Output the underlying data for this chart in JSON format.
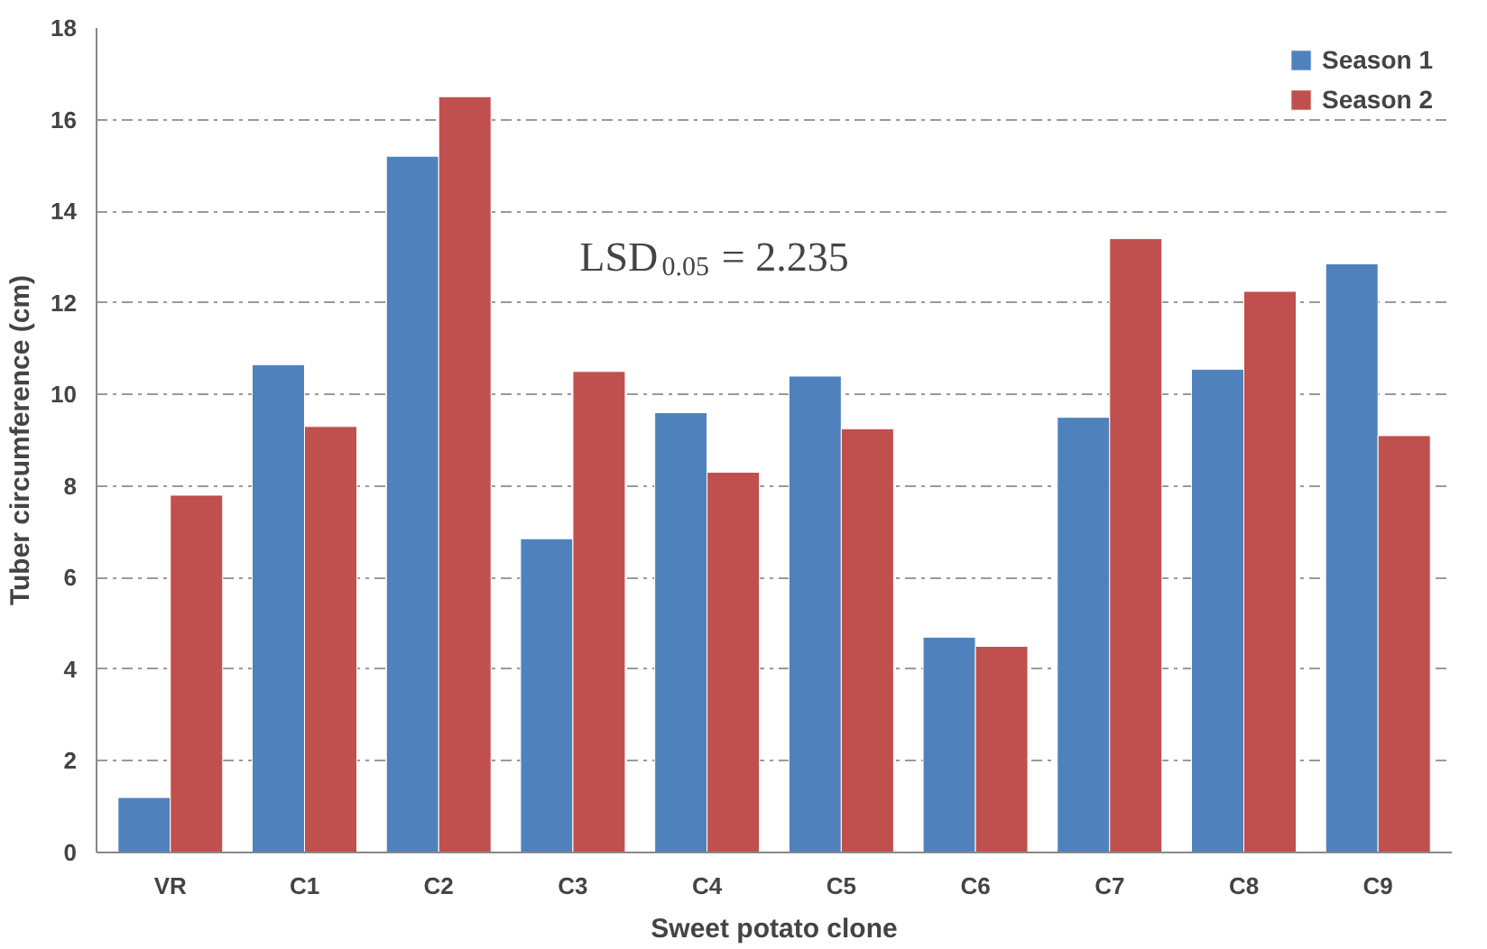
{
  "chart_data": {
    "type": "bar",
    "xlabel": "Sweet potato clone",
    "ylabel": "Tuber circumference (cm)",
    "categories": [
      "VR",
      "C1",
      "C2",
      "C3",
      "C4",
      "C5",
      "C6",
      "C7",
      "C8",
      "C9"
    ],
    "series": [
      {
        "name": "Season 1",
        "color": "#4f81bd",
        "values": [
          1.2,
          10.65,
          15.2,
          6.85,
          9.6,
          10.4,
          4.7,
          9.5,
          10.55,
          12.85
        ]
      },
      {
        "name": "Season 2",
        "color": "#c0504d",
        "values": [
          7.8,
          9.3,
          16.5,
          10.5,
          8.3,
          9.25,
          4.5,
          13.4,
          12.25,
          9.1
        ]
      }
    ],
    "ylim": [
      0,
      18
    ],
    "yticks": [
      0,
      2,
      4,
      6,
      8,
      10,
      12,
      14,
      16,
      18
    ],
    "grid": "y",
    "legend": "top right",
    "annotations": [
      "LSD$_{0.05}$ = 2.235"
    ]
  }
}
